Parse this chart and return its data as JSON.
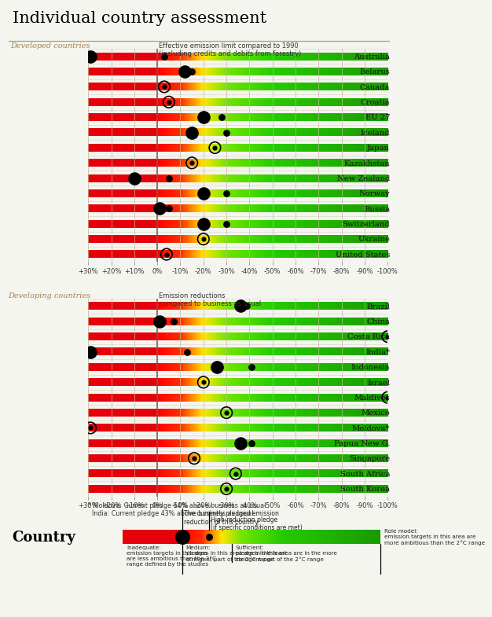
{
  "title": "Individual country assessment",
  "developed_label": "Developed countries",
  "developed_note": "Effective emission limit compared to 1990\n(including credits and debits from forestry)",
  "developing_label": "Developing countries",
  "developing_note": "Emission reductions\ncompared to business as usual",
  "footnote": "* Moldova: Current pledge 64% above business as usual\n  India: Current pledge 43% above business as usual",
  "developed_countries": [
    {
      "name": "Australia",
      "dot1": 29,
      "dot2": -3,
      "dot1_circle": false,
      "dot1_large": true,
      "dot2_small": true
    },
    {
      "name": "Belarus",
      "dot1": -12,
      "dot2": -15,
      "dot1_circle": false,
      "dot1_large": true,
      "dot2_small": true
    },
    {
      "name": "Canada",
      "dot1": -3,
      "dot2": null,
      "dot1_circle": true,
      "dot1_large": false,
      "dot2_small": false
    },
    {
      "name": "Croatia",
      "dot1": -5,
      "dot2": null,
      "dot1_circle": true,
      "dot1_large": false,
      "dot2_small": false
    },
    {
      "name": "EU 27",
      "dot1": -20,
      "dot2": -28,
      "dot1_circle": false,
      "dot1_large": true,
      "dot2_small": true
    },
    {
      "name": "Iceland",
      "dot1": -15,
      "dot2": -30,
      "dot1_circle": false,
      "dot1_large": true,
      "dot2_small": true
    },
    {
      "name": "Japan",
      "dot1": -25,
      "dot2": null,
      "dot1_circle": true,
      "dot1_large": false,
      "dot2_small": false
    },
    {
      "name": "Kazakhstan",
      "dot1": -15,
      "dot2": null,
      "dot1_circle": true,
      "dot1_large": false,
      "dot2_small": false
    },
    {
      "name": "New Zealand",
      "dot1": 10,
      "dot2": -5,
      "dot1_circle": false,
      "dot1_large": true,
      "dot2_small": true
    },
    {
      "name": "Norway",
      "dot1": -20,
      "dot2": -30,
      "dot1_circle": false,
      "dot1_large": true,
      "dot2_small": true
    },
    {
      "name": "Russia",
      "dot1": -1,
      "dot2": -5,
      "dot1_circle": false,
      "dot1_large": true,
      "dot2_small": true
    },
    {
      "name": "Switzerland",
      "dot1": -20,
      "dot2": -30,
      "dot1_circle": false,
      "dot1_large": true,
      "dot2_small": true
    },
    {
      "name": "Ukraine",
      "dot1": -20,
      "dot2": null,
      "dot1_circle": true,
      "dot1_large": false,
      "dot2_small": false
    },
    {
      "name": "United States",
      "dot1": -4,
      "dot2": null,
      "dot1_circle": true,
      "dot1_large": false,
      "dot2_small": false
    }
  ],
  "developing_countries": [
    {
      "name": "Brazil",
      "dot1": -36,
      "dot2": -39,
      "dot1_circle": false,
      "dot1_large": true,
      "dot2_small": true
    },
    {
      "name": "China",
      "dot1": -1,
      "dot2": -7,
      "dot1_circle": false,
      "dot1_large": true,
      "dot2_small": true
    },
    {
      "name": "Costa Rica",
      "dot1": -100,
      "dot2": null,
      "dot1_circle": true,
      "dot1_large": false,
      "dot2_small": false
    },
    {
      "name": "India*",
      "dot1": 29,
      "dot2": -13,
      "dot1_circle": false,
      "dot1_large": true,
      "dot2_small": true
    },
    {
      "name": "Indonesia",
      "dot1": -26,
      "dot2": -41,
      "dot1_circle": false,
      "dot1_large": true,
      "dot2_small": true
    },
    {
      "name": "Israel",
      "dot1": -20,
      "dot2": null,
      "dot1_circle": true,
      "dot1_large": false,
      "dot2_small": false
    },
    {
      "name": "Maldives",
      "dot1": -100,
      "dot2": null,
      "dot1_circle": true,
      "dot1_large": false,
      "dot2_small": false
    },
    {
      "name": "Mexico",
      "dot1": -30,
      "dot2": null,
      "dot1_circle": true,
      "dot1_large": false,
      "dot2_small": false
    },
    {
      "name": "Moldova*",
      "dot1": 29,
      "dot2": null,
      "dot1_circle": true,
      "dot1_large": false,
      "dot2_small": false
    },
    {
      "name": "Papua New G.",
      "dot1": -36,
      "dot2": -41,
      "dot1_circle": false,
      "dot1_large": true,
      "dot2_small": true
    },
    {
      "name": "Singapore",
      "dot1": -16,
      "dot2": null,
      "dot1_circle": true,
      "dot1_large": false,
      "dot2_small": false
    },
    {
      "name": "South Africa",
      "dot1": -34,
      "dot2": null,
      "dot1_circle": true,
      "dot1_large": false,
      "dot2_small": false
    },
    {
      "name": "South Korea",
      "dot1": -30,
      "dot2": null,
      "dot1_circle": true,
      "dot1_large": false,
      "dot2_small": false
    }
  ],
  "xtick_vals": [
    30,
    20,
    10,
    0,
    -10,
    -20,
    -30,
    -40,
    -50,
    -60,
    -70,
    -80,
    -90,
    -100
  ],
  "xtick_labels": [
    "+30%",
    "+20%",
    "+10%",
    "0%",
    "-10%",
    "-20%",
    "-30%",
    "-40%",
    "-50%",
    "-60%",
    "-70%",
    "-80%",
    "-90%",
    "-100%"
  ],
  "legend_texts": {
    "inadequate": "Inadequate:\nemission targets in this area\nare less ambitious than the 2°C\nrange defined by the studies",
    "medium": "Medium:\npledges in this area are in the least\nstringent part of the 2°C range",
    "sufficient": "Sufficient:\npledges in this area are in the more\nstringent part of the 2°C range",
    "role_model": "Role model:\nemission targets in this area are\nmore ambitious than the 2°C range",
    "current": "The currently pledged emission\nreduction of this country",
    "high": "High reduction pledge\n(if specific conditions are met)"
  }
}
